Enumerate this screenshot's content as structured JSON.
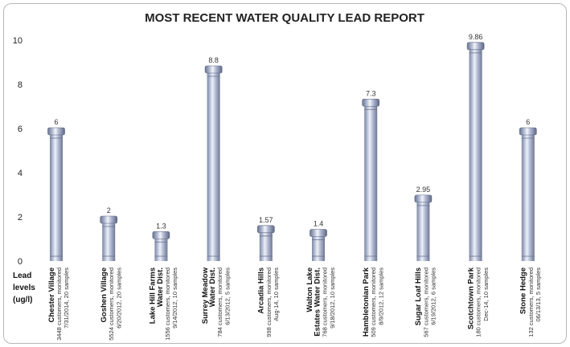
{
  "chart_data": {
    "type": "bar",
    "title": "MOST RECENT WATER QUALITY LEAD REPORT",
    "ylabel_lines": [
      "Lead",
      "levels",
      "(ug/l)"
    ],
    "ylim": [
      0,
      10
    ],
    "yticks": [
      0,
      2,
      4,
      6,
      8,
      10
    ],
    "grid": false,
    "bar_color": "#a9b3cd",
    "categories": [
      {
        "name_lines": [
          "Chester Village"
        ],
        "sub_lines": [
          "3448 customers, monitored",
          "7/31/2014, 20 samples"
        ]
      },
      {
        "name_lines": [
          "Goshen Village"
        ],
        "sub_lines": [
          "5524 customers, monitored",
          "6/20/2012, 20 samples"
        ]
      },
      {
        "name_lines": [
          "Lake Hill Farms",
          "Water Dist."
        ],
        "sub_lines": [
          "1556 customers, monitored",
          "9/14/2012, 10 samples"
        ]
      },
      {
        "name_lines": [
          "Surrey Meadow",
          "Water Dist."
        ],
        "sub_lines": [
          "784 customers, monitored",
          "6/13/2012, 5 samples"
        ]
      },
      {
        "name_lines": [
          "Arcadia Hills"
        ],
        "sub_lines": [
          "998 customers, monitored",
          "Aug-14, 10 samples"
        ]
      },
      {
        "name_lines": [
          "Walton Lake",
          "Estates Water Dist."
        ],
        "sub_lines": [
          "768 customers, monitored",
          "9/18/2012, 10 samples"
        ]
      },
      {
        "name_lines": [
          "Hambletonian Park"
        ],
        "sub_lines": [
          "509 customers, monitored",
          "8/9/2012, 12 samples"
        ]
      },
      {
        "name_lines": [
          "Sugar Loaf Hills"
        ],
        "sub_lines": [
          "567 customers, monitored",
          "6/19/2012, 6 samples"
        ]
      },
      {
        "name_lines": [
          "Scotchtown Park"
        ],
        "sub_lines": [
          "180 customers, monitored",
          "Dec-14, 10 samples"
        ]
      },
      {
        "name_lines": [
          "Stone Hedge"
        ],
        "sub_lines": [
          "132 customers, monitored",
          "06/13/13, 5 samples"
        ]
      }
    ],
    "values": [
      6,
      2,
      1.3,
      8.8,
      1.57,
      1.4,
      7.3,
      2.95,
      9.86,
      6
    ],
    "value_labels": [
      "6",
      "2",
      "1.3",
      "8.8",
      "1.57",
      "1.4",
      "7.3",
      "2.95",
      "9.86",
      "6"
    ]
  }
}
